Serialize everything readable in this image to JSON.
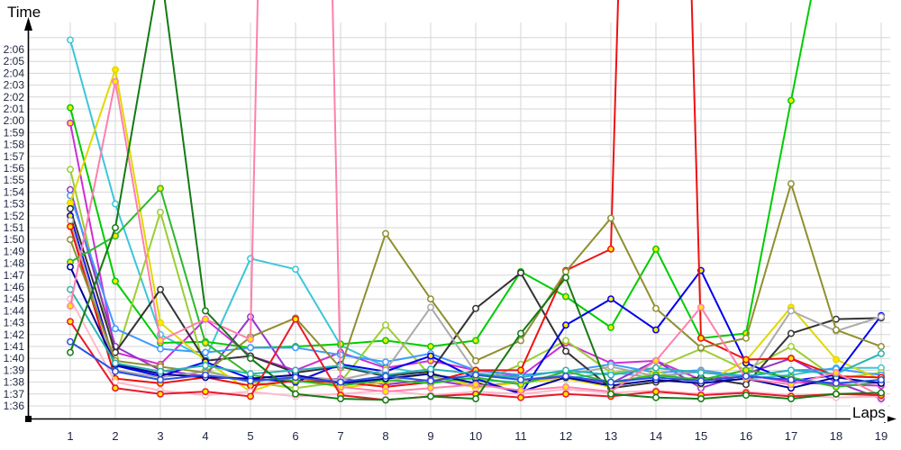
{
  "chart": {
    "y_axis_title": "Time",
    "x_axis_title": "Laps"
  },
  "style": {
    "grid_color": "#d6d6d6",
    "axis_color": "#000000",
    "tick_label_color": "#1c2440",
    "marker_yellow_fill": "#ffe800",
    "marker_white_fill": "#ffffff"
  },
  "chart_data": {
    "type": "line",
    "title": "",
    "xlabel": "Laps",
    "ylabel": "Time",
    "grid": true,
    "legend": "none",
    "x_ticks": [
      "1",
      "2",
      "3",
      "4",
      "5",
      "6",
      "7",
      "8",
      "9",
      "10",
      "11",
      "12",
      "13",
      "14",
      "15",
      "16",
      "17",
      "18",
      "19"
    ],
    "y_ticks": [
      "2:06",
      "2:05",
      "2:04",
      "2:03",
      "2:02",
      "2:01",
      "2:00",
      "1:59",
      "1:58",
      "1:57",
      "1:56",
      "1:55",
      "1:54",
      "1:53",
      "1:52",
      "1:51",
      "1:50",
      "1:49",
      "1:48",
      "1:47",
      "1:46",
      "1:45",
      "1:44",
      "1:43",
      "1:42",
      "1:41",
      "1:40",
      "1:39",
      "1:38",
      "1:37",
      "1:36"
    ],
    "y_tick_top_seconds": 126,
    "ylim": [
      "1:36",
      "2:06"
    ],
    "series": [
      {
        "name": "cyan",
        "color": "#3bc6d8",
        "marker": "white",
        "lap_times_seconds": [
          126.8,
          113.0,
          102.0,
          100.0,
          108.4,
          107.5,
          101.1,
          99.3,
          98.6,
          98.2,
          98.0,
          98.3,
          98.8,
          98.4,
          98.9,
          98.3,
          98.6,
          99.2,
          99.2
        ]
      },
      {
        "name": "bright-green",
        "color": "#00cc00",
        "marker": "yellow",
        "lap_times_seconds": [
          121.1,
          106.5,
          101.3,
          101.4,
          100.9,
          101.0,
          101.2,
          101.5,
          101.0,
          101.5,
          107.3,
          105.2,
          102.6,
          109.2,
          101.7,
          102.1,
          121.7,
          141.0,
          150.0
        ]
      },
      {
        "name": "magenta",
        "color": "#cc2fd4",
        "marker": "yellow",
        "lap_times_seconds": [
          119.8,
          100.5,
          99.5,
          103.3,
          100.2,
          99.0,
          100.5,
          99.2,
          99.8,
          99.0,
          98.5,
          101.3,
          99.6,
          99.8,
          98.2,
          98.6,
          98.0,
          97.8,
          97.7
        ]
      },
      {
        "name": "yellow-green",
        "color": "#9acd32",
        "marker": "white",
        "lap_times_seconds": [
          115.9,
          100.0,
          112.3,
          99.0,
          98.0,
          97.5,
          98.0,
          102.8,
          98.5,
          97.8,
          99.5,
          101.5,
          98.8,
          99.2,
          100.8,
          99.0,
          101.0,
          98.3,
          98.8
        ]
      },
      {
        "name": "violet",
        "color": "#9933cc",
        "marker": "white",
        "lap_times_seconds": [
          114.2,
          101.0,
          99.0,
          98.5,
          103.5,
          98.0,
          98.3,
          97.8,
          98.2,
          97.6,
          98.0,
          98.5,
          97.9,
          99.8,
          97.5,
          98.7,
          100.0,
          98.0,
          96.6
        ]
      },
      {
        "name": "light-blue",
        "color": "#3e9bff",
        "marker": "white",
        "lap_times_seconds": [
          113.7,
          102.5,
          100.8,
          100.5,
          100.9,
          100.9,
          100.3,
          99.7,
          100.4,
          99.0,
          98.6,
          98.9,
          99.5,
          98.8,
          99.0,
          98.5,
          99.0,
          99.1,
          98.6
        ]
      },
      {
        "name": "yellow",
        "color": "#e0d800",
        "marker": "yellow",
        "lap_times_seconds": [
          113.1,
          124.3,
          103.0,
          99.8,
          97.2,
          98.5,
          97.5,
          98.0,
          98.8,
          97.5,
          98.0,
          98.3,
          97.6,
          98.9,
          97.8,
          99.8,
          104.3,
          99.9,
          98.2
        ]
      },
      {
        "name": "black",
        "color": "#333333",
        "marker": "white",
        "lap_times_seconds": [
          112.6,
          100.5,
          105.8,
          99.8,
          100.2,
          98.8,
          99.3,
          98.5,
          98.9,
          104.2,
          107.2,
          100.6,
          97.5,
          98.0,
          98.4,
          97.8,
          102.1,
          103.3,
          103.4
        ]
      },
      {
        "name": "blue",
        "color": "#0000ee",
        "marker": "yellow",
        "lap_times_seconds": [
          112.0,
          99.4,
          98.5,
          99.7,
          98.3,
          98.0,
          99.5,
          98.9,
          100.2,
          98.3,
          97.0,
          102.8,
          105.0,
          102.4,
          107.4,
          99.6,
          98.1,
          98.6,
          103.6
        ]
      },
      {
        "name": "silver",
        "color": "#aaaaaa",
        "marker": "white",
        "lap_times_seconds": [
          111.6,
          99.0,
          98.4,
          98.9,
          98.0,
          98.5,
          98.2,
          99.0,
          104.3,
          98.8,
          98.2,
          98.6,
          99.3,
          98.5,
          98.9,
          98.3,
          104.0,
          102.3,
          103.5
        ]
      },
      {
        "name": "red",
        "color": "#ee1111",
        "marker": "yellow",
        "lap_times_seconds": [
          111.1,
          98.3,
          97.9,
          98.4,
          97.7,
          98.1,
          98.0,
          97.6,
          98.0,
          99.0,
          99.0,
          107.4,
          109.2,
          240.0,
          101.7,
          99.9,
          100.0,
          98.5,
          98.4
        ]
      },
      {
        "name": "olive",
        "color": "#8f8f30",
        "marker": "white",
        "lap_times_seconds": [
          110.0,
          99.8,
          99.3,
          98.8,
          101.8,
          103.4,
          99.2,
          110.5,
          105.0,
          99.8,
          101.5,
          107.3,
          111.8,
          104.2,
          100.9,
          101.7,
          114.7,
          102.4,
          101.0
        ]
      },
      {
        "name": "medium-green",
        "color": "#2eb82e",
        "marker": "yellow",
        "lap_times_seconds": [
          108.1,
          110.3,
          114.3,
          101.3,
          98.6,
          98.1,
          97.7,
          98.2,
          97.9,
          98.4,
          97.8,
          98.9,
          98.0,
          98.6,
          98.2,
          99.0,
          98.4,
          97.6,
          98.0
        ]
      },
      {
        "name": "navy",
        "color": "#000099",
        "marker": "white",
        "lap_times_seconds": [
          107.7,
          99.5,
          98.7,
          98.4,
          98.3,
          98.6,
          97.9,
          98.3,
          98.7,
          97.9,
          97.2,
          98.4,
          97.7,
          98.2,
          97.9,
          98.3,
          97.5,
          98.4,
          97.9
        ]
      },
      {
        "name": "teal",
        "color": "#2ab3b3",
        "marker": "white",
        "lap_times_seconds": [
          105.8,
          99.6,
          98.9,
          99.4,
          98.7,
          99.0,
          99.4,
          98.6,
          99.1,
          98.7,
          98.4,
          99.0,
          98.6,
          99.2,
          98.8,
          98.5,
          99.0,
          98.7,
          100.4
        ]
      },
      {
        "name": "light-pink",
        "color": "#ffb9c9",
        "marker": "white",
        "lap_times_seconds": [
          105.0,
          98.0,
          97.3,
          96.9,
          97.2,
          96.8,
          97.0,
          97.3,
          96.9,
          97.2,
          97.0,
          97.4,
          97.1,
          97.3,
          97.0,
          97.2,
          96.9,
          96.7,
          96.8
        ]
      },
      {
        "name": "pink",
        "color": "#ff7fae",
        "marker": "yellow",
        "lap_times_seconds": [
          104.4,
          123.3,
          101.5,
          103.3,
          101.6,
          280.0,
          97.6,
          97.2,
          97.5,
          97.8,
          97.3,
          97.6,
          97.2,
          99.8,
          104.3,
          98.3,
          97.8,
          98.8,
          96.8
        ]
      },
      {
        "name": "crimson",
        "color": "#e8192c",
        "marker": "yellow",
        "lap_times_seconds": [
          103.1,
          97.5,
          97.0,
          97.2,
          96.8,
          103.3,
          96.9,
          96.5,
          96.8,
          97.0,
          96.7,
          97.0,
          96.8,
          97.2,
          96.9,
          97.1,
          96.8,
          97.0,
          96.9
        ]
      },
      {
        "name": "royal-blue",
        "color": "#2b50e0",
        "marker": "white",
        "lap_times_seconds": [
          101.4,
          98.9,
          98.2,
          98.6,
          98.1,
          98.4,
          98.0,
          98.5,
          98.1,
          98.6,
          98.2,
          98.5,
          98.0,
          98.4,
          98.1,
          98.5,
          98.2,
          97.9,
          98.2
        ]
      },
      {
        "name": "forest-green",
        "color": "#157a15",
        "marker": "white",
        "lap_times_seconds": [
          100.5,
          111.0,
          133.0,
          104.0,
          100.0,
          97.0,
          96.6,
          96.5,
          96.8,
          96.6,
          102.1,
          106.8,
          97.0,
          96.7,
          96.6,
          96.9,
          96.6,
          97.0,
          97.1
        ]
      }
    ]
  }
}
